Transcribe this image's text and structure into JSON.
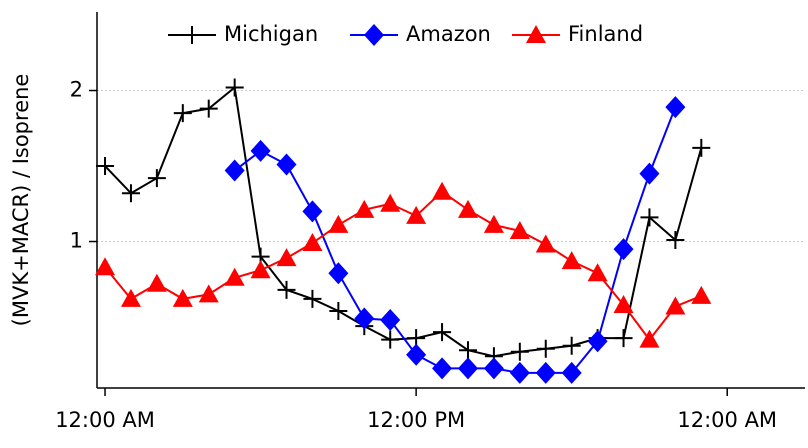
{
  "chart_data": {
    "type": "line",
    "ylabel": "(MVK+MACR) / Isoprene",
    "x": [
      0,
      1,
      2,
      3,
      4,
      5,
      6,
      7,
      8,
      9,
      10,
      11,
      12,
      13,
      14,
      15,
      16,
      17,
      18,
      19,
      20,
      21,
      22,
      23
    ],
    "xlim": [
      -0.31,
      27.0
    ],
    "xticks": [
      {
        "value": 0,
        "label": "12:00 AM"
      },
      {
        "value": 12,
        "label": "12:00 PM"
      },
      {
        "value": 24,
        "label": "12:00 AM"
      }
    ],
    "ylim": [
      0.03,
      2.52
    ],
    "yticks": [
      1,
      2
    ],
    "grid": true,
    "legend": "top",
    "series": [
      {
        "name": "Michigan",
        "color": "#000000",
        "marker": "plus",
        "values": [
          1.5,
          1.32,
          1.42,
          1.85,
          1.88,
          2.02,
          0.9,
          0.68,
          0.62,
          0.54,
          0.44,
          0.35,
          0.36,
          0.4,
          0.28,
          0.24,
          0.27,
          0.29,
          0.31,
          0.36,
          0.36,
          1.16,
          1.01,
          1.62
        ]
      },
      {
        "name": "Amazon",
        "color": "#0000ff",
        "marker": "diamond",
        "values": [
          null,
          null,
          null,
          null,
          null,
          1.47,
          1.6,
          1.51,
          1.2,
          0.79,
          0.49,
          0.48,
          0.25,
          0.16,
          0.16,
          0.16,
          0.13,
          0.13,
          0.13,
          0.34,
          0.95,
          1.45,
          1.89,
          null
        ]
      },
      {
        "name": "Finland",
        "color": "#ff0000",
        "marker": "triangle",
        "values": [
          0.83,
          0.62,
          0.72,
          0.62,
          0.65,
          0.76,
          0.81,
          0.89,
          0.99,
          1.11,
          1.21,
          1.25,
          1.17,
          1.33,
          1.21,
          1.11,
          1.07,
          0.98,
          0.87,
          0.79,
          0.58,
          0.35,
          0.57,
          0.64
        ]
      }
    ]
  }
}
